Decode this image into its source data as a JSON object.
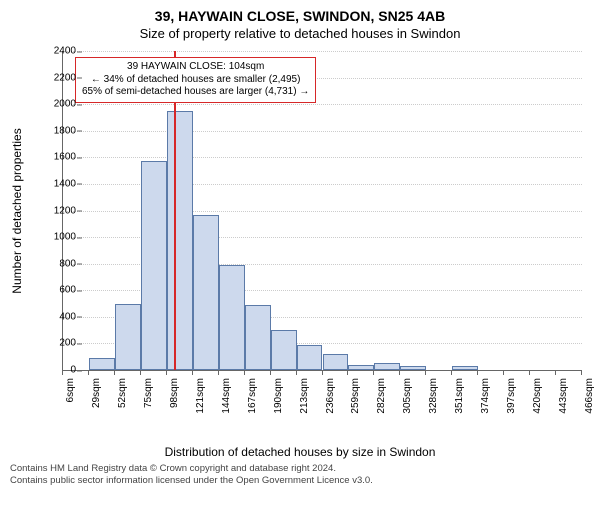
{
  "title_main": "39, HAYWAIN CLOSE, SWINDON, SN25 4AB",
  "title_sub": "Size of property relative to detached houses in Swindon",
  "ylabel": "Number of detached properties",
  "xlabel": "Distribution of detached houses by size in Swindon",
  "footer_line1": "Contains HM Land Registry data © Crown copyright and database right 2024.",
  "footer_line2": "Contains public sector information licensed under the Open Government Licence v3.0.",
  "chart": {
    "type": "histogram",
    "ylim": [
      0,
      2400
    ],
    "ytick_step": 200,
    "background_color": "#ffffff",
    "grid_color": "#cccccc",
    "axis_color": "#666666",
    "bar_fill": "#cdd9ed",
    "bar_border": "#5b7aa8",
    "refline_color": "#d62728",
    "refline_x": 104,
    "x_start": 6,
    "x_step": 23,
    "x_count": 21,
    "x_unit": "sqm",
    "values": [
      0,
      90,
      500,
      1570,
      1950,
      1170,
      790,
      490,
      300,
      190,
      120,
      40,
      50,
      30,
      0,
      30,
      0,
      0,
      0,
      0
    ],
    "annotation": {
      "line1": "39 HAYWAIN CLOSE: 104sqm",
      "line2": "← 34% of detached houses are smaller (2,495)",
      "line3": "65% of semi-detached houses are larger (4,731) →"
    },
    "title_fontsize": 14,
    "subtitle_fontsize": 13,
    "label_fontsize": 12,
    "tick_fontsize": 10,
    "annot_fontsize": 10,
    "footer_fontsize": 9.5
  }
}
